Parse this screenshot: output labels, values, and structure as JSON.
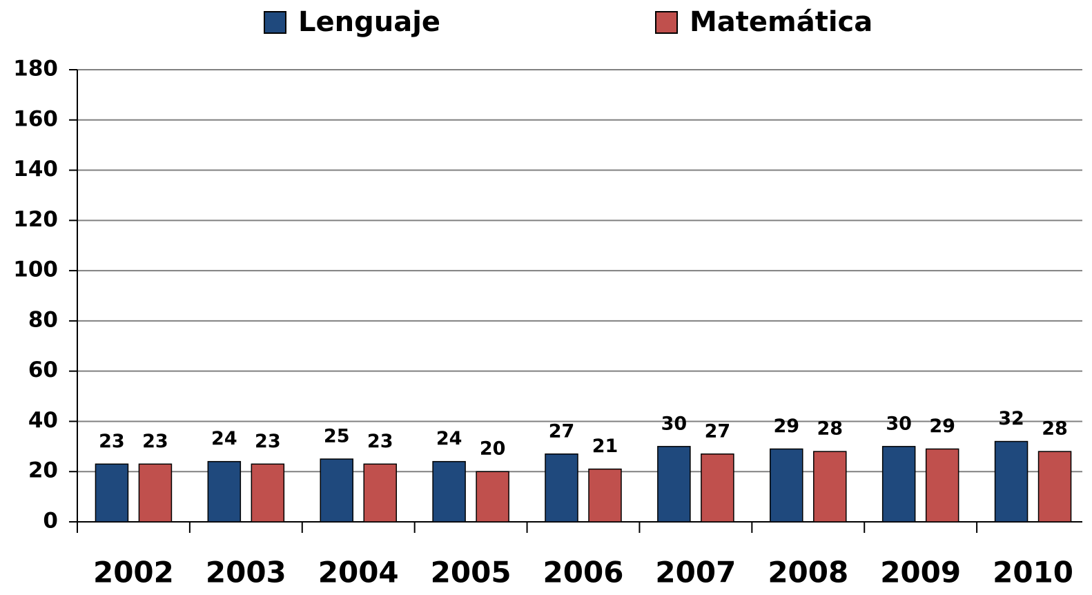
{
  "chart_data": {
    "type": "bar",
    "categories": [
      "2002",
      "2003",
      "2004",
      "2005",
      "2006",
      "2007",
      "2008",
      "2009",
      "2010"
    ],
    "series": [
      {
        "name": "Lenguaje",
        "color": "#1f497d",
        "values": [
          23,
          24,
          25,
          24,
          27,
          30,
          29,
          30,
          32
        ]
      },
      {
        "name": "Matemática",
        "color": "#c0504d",
        "values": [
          23,
          23,
          23,
          20,
          21,
          27,
          28,
          29,
          28
        ]
      }
    ],
    "ylim": [
      0,
      180
    ],
    "yticks": [
      0,
      20,
      40,
      60,
      80,
      100,
      120,
      140,
      160,
      180
    ],
    "grid": true,
    "legend": "top",
    "data_labels": true
  }
}
